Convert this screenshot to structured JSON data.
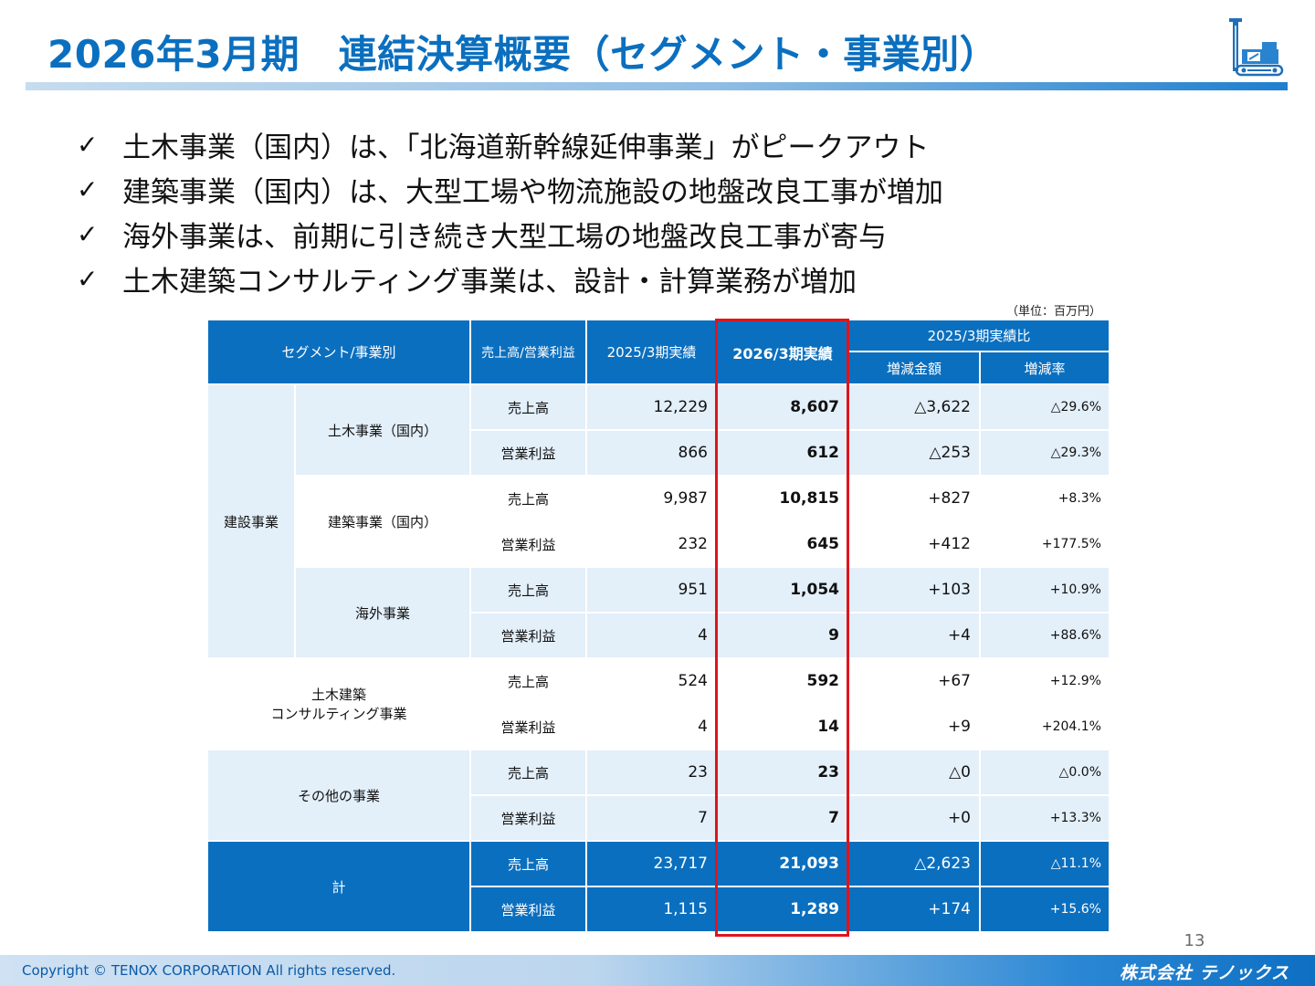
{
  "title": "2026年3月期　連結決算概要（セグメント・事業別）",
  "bullets": [
    "土木事業（国内）は、「北海道新幹線延伸事業」がピークアウト",
    "建築事業（国内）は、大型工場や物流施設の地盤改良工事が増加",
    "海外事業は、前期に引き続き大型工場の地盤改良工事が寄与",
    "土木建築コンサルティング事業は、設計・計算業務が増加"
  ],
  "check_mark": "✓",
  "unit_note": "（単位：百万円）",
  "table": {
    "headers": {
      "segment": "セグメント/事業別",
      "type": "売上高/営業利益",
      "fy2025": "2025/3期実績",
      "fy2026": "2026/3期実績",
      "compare": "2025/3期実績比",
      "diff": "増減金額",
      "rate": "増減率"
    },
    "groups": {
      "construction": "建設事業",
      "civil_domestic": "土木事業（国内）",
      "building_domestic": "建築事業（国内）",
      "overseas": "海外事業",
      "consulting_line1": "土木建築",
      "consulting_line2": "コンサルティング事業",
      "other": "その他の事業",
      "total": "計"
    },
    "labels": {
      "sales": "売上高",
      "profit": "営業利益"
    },
    "rows": [
      {
        "fy2025": "12,229",
        "fy2026": "8,607",
        "diff": "△3,622",
        "rate": "△29.6%"
      },
      {
        "fy2025": "866",
        "fy2026": "612",
        "diff": "△253",
        "rate": "△29.3%"
      },
      {
        "fy2025": "9,987",
        "fy2026": "10,815",
        "diff": "+827",
        "rate": "+8.3%"
      },
      {
        "fy2025": "232",
        "fy2026": "645",
        "diff": "+412",
        "rate": "+177.5%"
      },
      {
        "fy2025": "951",
        "fy2026": "1,054",
        "diff": "+103",
        "rate": "+10.9%"
      },
      {
        "fy2025": "4",
        "fy2026": "9",
        "diff": "+4",
        "rate": "+88.6%"
      },
      {
        "fy2025": "524",
        "fy2026": "592",
        "diff": "+67",
        "rate": "+12.9%"
      },
      {
        "fy2025": "4",
        "fy2026": "14",
        "diff": "+9",
        "rate": "+204.1%"
      },
      {
        "fy2025": "23",
        "fy2026": "23",
        "diff": "△0",
        "rate": "△0.0%"
      },
      {
        "fy2025": "7",
        "fy2026": "7",
        "diff": "+0",
        "rate": "+13.3%"
      },
      {
        "fy2025": "23,717",
        "fy2026": "21,093",
        "diff": "△2,623",
        "rate": "△11.1%"
      },
      {
        "fy2025": "1,115",
        "fy2026": "1,289",
        "diff": "+174",
        "rate": "+15.6%"
      }
    ]
  },
  "page_number": "13",
  "footer": {
    "copyright": "Copyright © TENOX CORPORATION All rights reserved.",
    "company": "株式会社 テノックス"
  },
  "colors": {
    "accent": "#0b6fbf",
    "highlight": "#e0141c",
    "row_light": "#e3eff9"
  },
  "icons": [
    "checkmark-icon",
    "drilling-rig-icon"
  ]
}
